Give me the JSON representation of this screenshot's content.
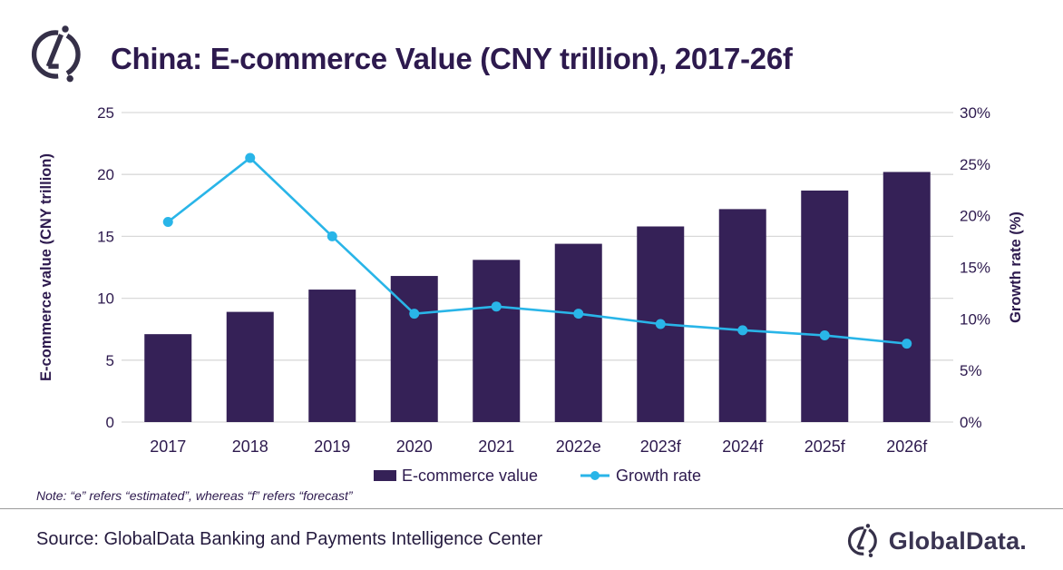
{
  "header": {
    "title": "China: E-commerce Value (CNY trillion), 2017-26f"
  },
  "chart_data": {
    "type": "combo: bar (left axis) + line (right axis)",
    "title": "China: E-commerce Value (CNY trillion), 2017-26f",
    "categories": [
      "2017",
      "2018",
      "2019",
      "2020",
      "2021",
      "2022e",
      "2023f",
      "2024f",
      "2025f",
      "2026f"
    ],
    "series": [
      {
        "name": "E-commerce value",
        "type": "bar",
        "axis": "left",
        "color": "#352157",
        "values": [
          7.1,
          8.9,
          10.7,
          11.8,
          13.1,
          14.4,
          15.8,
          17.2,
          18.7,
          20.2
        ]
      },
      {
        "name": "Growth rate",
        "type": "line",
        "axis": "right",
        "color": "#29b5e8",
        "values": [
          19.4,
          25.6,
          18.0,
          10.5,
          11.2,
          10.5,
          9.5,
          8.9,
          8.4,
          7.6
        ]
      }
    ],
    "left_axis": {
      "label": "E-commerce value (CNY trillion)",
      "min": 0,
      "max": 25,
      "step": 5,
      "tick_suffix": ""
    },
    "right_axis": {
      "label": "Growth rate (%)",
      "min": 0,
      "max": 30,
      "step": 5,
      "tick_suffix": "%"
    },
    "grid": true,
    "legend_position": "bottom"
  },
  "note": "Note: “e” refers “estimated”, whereas “f” refers “forecast”",
  "footer": {
    "source": "Source: GlobalData Banking and Payments Intelligence Center",
    "brand_wordmark": "GlobalData."
  },
  "colors": {
    "text": "#2d1a4e",
    "bar": "#352157",
    "line": "#29b5e8",
    "grid": "#d9d9d9",
    "separator": "#9b9b9b",
    "logo": "#353048"
  }
}
